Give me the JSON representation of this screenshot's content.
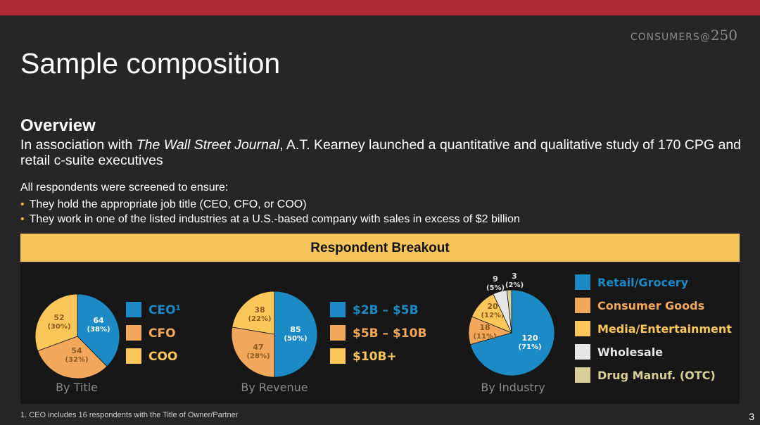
{
  "header": {
    "brand": "CONSUMERS",
    "brand_at": "@",
    "brand_num": "250"
  },
  "title": "Sample composition",
  "overview": {
    "heading": "Overview",
    "text_before": "In association with ",
    "journal": "The Wall Street Journal",
    "text_after": ", A.T. Kearney launched a quantitative and qualitative study of 170 CPG and retail c-suite executives"
  },
  "screening": {
    "intro": "All respondents were screened to ensure:",
    "bullets": [
      "They hold the appropriate job title (CEO, CFO, or COO)",
      "They work in one of the listed industries at a U.S.-based company with sales in excess of $2 billion"
    ]
  },
  "breakout_title": "Respondent Breakout",
  "colors": {
    "blue": "#1b8ac5",
    "orange": "#f1a85b",
    "yellow": "#fcc75a",
    "white": "#e6e6e6",
    "olive": "#d8cf98"
  },
  "chart_data": [
    {
      "type": "pie",
      "title": "By Title",
      "slices": [
        {
          "label": "CEO¹",
          "value": 64,
          "pct": "(38%)",
          "color": "#1b8ac5"
        },
        {
          "label": "CFO",
          "value": 54,
          "pct": "(32%)",
          "color": "#f1a85b"
        },
        {
          "label": "COO",
          "value": 52,
          "pct": "(30%)",
          "color": "#fcc75a"
        }
      ]
    },
    {
      "type": "pie",
      "title": "By Revenue",
      "slices": [
        {
          "label": "$2B – $5B",
          "value": 85,
          "pct": "(50%)",
          "color": "#1b8ac5"
        },
        {
          "label": "$5B – $10B",
          "value": 47,
          "pct": "(28%)",
          "color": "#f1a85b"
        },
        {
          "label": "$10B+",
          "value": 38,
          "pct": "(22%)",
          "color": "#fcc75a"
        }
      ]
    },
    {
      "type": "pie",
      "title": "By Industry",
      "slices": [
        {
          "label": "Retail/Grocery",
          "value": 120,
          "pct": "(71%)",
          "color": "#1b8ac5"
        },
        {
          "label": "Consumer Goods",
          "value": 18,
          "pct": "(11%)",
          "color": "#f1a85b"
        },
        {
          "label": "Media/Entertainment",
          "value": 20,
          "pct": "(12%)",
          "color": "#fcc75a"
        },
        {
          "label": "Wholesale",
          "value": 9,
          "pct": "(5%)",
          "color": "#e6e6e6"
        },
        {
          "label": "Drug Manuf.  (OTC)",
          "value": 3,
          "pct": "(2%)",
          "color": "#d8cf98"
        }
      ]
    }
  ],
  "footnote": "1.  CEO includes 16 respondents with the Title of Owner/Partner",
  "page_number": "3"
}
